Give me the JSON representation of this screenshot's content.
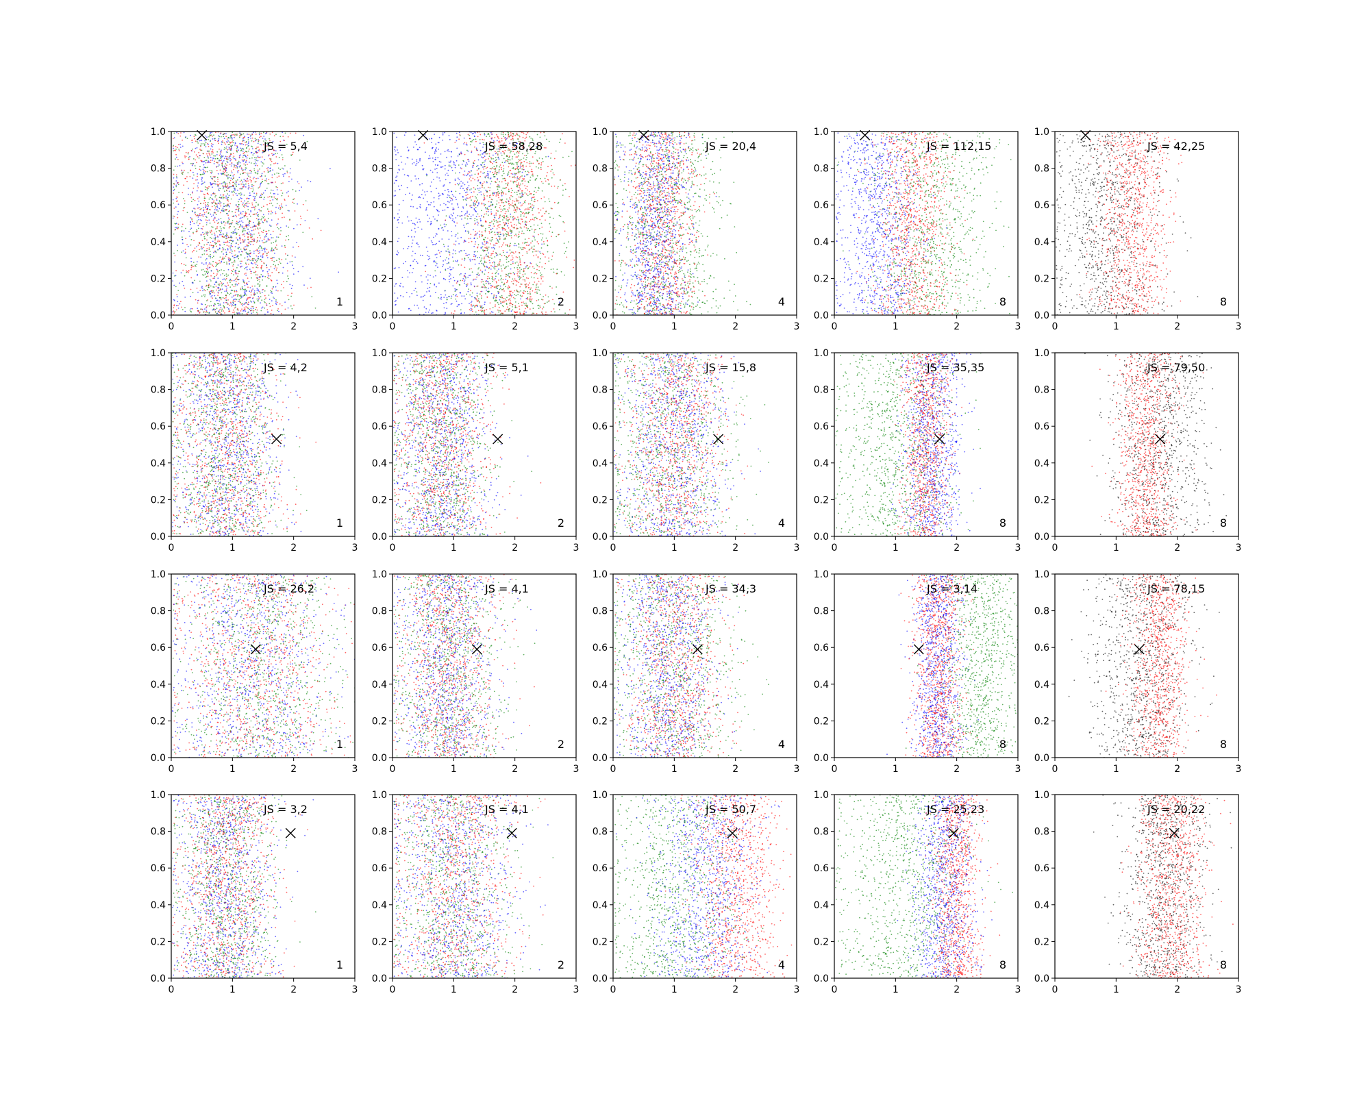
{
  "chart_data": {
    "type": "scatter",
    "layout": {
      "rows": 4,
      "cols": 5
    },
    "xlim": [
      0,
      3
    ],
    "ylim": [
      0,
      1
    ],
    "x_ticks": [
      "0",
      "1",
      "2",
      "3"
    ],
    "y_ticks": [
      "0.0",
      "0.2",
      "0.4",
      "0.6",
      "0.8",
      "1.0"
    ],
    "colors": {
      "blue": "#0000ff",
      "red": "#ff0000",
      "green": "#008000",
      "black": "#000000"
    },
    "panels": [
      {
        "row": 0,
        "col": 0,
        "js_label": "JS = 5,4",
        "corner_label": "1",
        "marker": [
          0.5,
          0.98
        ],
        "groups": [
          {
            "color": "blue",
            "mean": 1.0,
            "sd": 0.5
          },
          {
            "color": "red",
            "mean": 1.0,
            "sd": 0.5
          },
          {
            "color": "green",
            "mean": 1.0,
            "sd": 0.45
          }
        ]
      },
      {
        "row": 0,
        "col": 1,
        "js_label": "JS = 58,28",
        "corner_label": "2",
        "marker": [
          0.5,
          0.98
        ],
        "groups": [
          {
            "color": "blue",
            "mean": 1.0,
            "sd": 0.55
          },
          {
            "color": "red",
            "mean": 1.9,
            "sd": 0.4
          },
          {
            "color": "green",
            "mean": 1.9,
            "sd": 0.45
          }
        ]
      },
      {
        "row": 0,
        "col": 2,
        "js_label": "JS = 20,4",
        "corner_label": "4",
        "marker": [
          0.5,
          0.98
        ],
        "groups": [
          {
            "color": "blue",
            "mean": 0.7,
            "sd": 0.3
          },
          {
            "color": "red",
            "mean": 0.8,
            "sd": 0.3
          },
          {
            "color": "green",
            "mean": 0.9,
            "sd": 0.45
          }
        ]
      },
      {
        "row": 0,
        "col": 3,
        "js_label": "JS = 112,15",
        "corner_label": "8",
        "marker": [
          0.5,
          0.98
        ],
        "groups": [
          {
            "color": "blue",
            "mean": 0.7,
            "sd": 0.35
          },
          {
            "color": "red",
            "mean": 1.3,
            "sd": 0.3
          },
          {
            "color": "green",
            "mean": 1.6,
            "sd": 0.5
          }
        ]
      },
      {
        "row": 0,
        "col": 4,
        "js_label": "JS = 42,25",
        "corner_label": "8",
        "marker": [
          0.5,
          0.98
        ],
        "groups": [
          {
            "color": "black",
            "mean": 0.8,
            "sd": 0.45
          },
          {
            "color": "red",
            "mean": 1.3,
            "sd": 0.3
          }
        ]
      },
      {
        "row": 1,
        "col": 0,
        "js_label": "JS = 4,2",
        "corner_label": "1",
        "marker": [
          1.72,
          0.53
        ],
        "groups": [
          {
            "color": "blue",
            "mean": 0.9,
            "sd": 0.45
          },
          {
            "color": "red",
            "mean": 0.9,
            "sd": 0.45
          },
          {
            "color": "green",
            "mean": 0.9,
            "sd": 0.45
          }
        ]
      },
      {
        "row": 1,
        "col": 1,
        "js_label": "JS = 5,1",
        "corner_label": "2",
        "marker": [
          1.72,
          0.53
        ],
        "groups": [
          {
            "color": "blue",
            "mean": 0.8,
            "sd": 0.4
          },
          {
            "color": "red",
            "mean": 0.8,
            "sd": 0.4
          },
          {
            "color": "green",
            "mean": 0.8,
            "sd": 0.4
          }
        ]
      },
      {
        "row": 1,
        "col": 2,
        "js_label": "JS = 15,8",
        "corner_label": "4",
        "marker": [
          1.72,
          0.53
        ],
        "groups": [
          {
            "color": "blue",
            "mean": 1.0,
            "sd": 0.45
          },
          {
            "color": "red",
            "mean": 1.0,
            "sd": 0.4
          },
          {
            "color": "green",
            "mean": 0.9,
            "sd": 0.55
          }
        ]
      },
      {
        "row": 1,
        "col": 3,
        "js_label": "JS = 35,35",
        "corner_label": "8",
        "marker": [
          1.72,
          0.53
        ],
        "groups": [
          {
            "color": "green",
            "mean": 1.0,
            "sd": 0.5
          },
          {
            "color": "red",
            "mean": 1.5,
            "sd": 0.2
          },
          {
            "color": "blue",
            "mean": 1.6,
            "sd": 0.25
          }
        ]
      },
      {
        "row": 1,
        "col": 4,
        "js_label": "JS = 79,50",
        "corner_label": "8",
        "marker": [
          1.72,
          0.53
        ],
        "groups": [
          {
            "color": "black",
            "mean": 1.7,
            "sd": 0.4
          },
          {
            "color": "red",
            "mean": 1.5,
            "sd": 0.25
          }
        ]
      },
      {
        "row": 2,
        "col": 0,
        "js_label": "JS = 26,2",
        "corner_label": "1",
        "marker": [
          1.38,
          0.59
        ],
        "groups": [
          {
            "color": "blue",
            "mean": 1.3,
            "sd": 0.65
          },
          {
            "color": "red",
            "mean": 1.4,
            "sd": 0.65
          },
          {
            "color": "green",
            "mean": 1.5,
            "sd": 0.65
          }
        ]
      },
      {
        "row": 2,
        "col": 1,
        "js_label": "JS = 4,1",
        "corner_label": "2",
        "marker": [
          1.38,
          0.59
        ],
        "groups": [
          {
            "color": "blue",
            "mean": 0.9,
            "sd": 0.4
          },
          {
            "color": "red",
            "mean": 0.9,
            "sd": 0.4
          },
          {
            "color": "green",
            "mean": 0.9,
            "sd": 0.45
          }
        ]
      },
      {
        "row": 2,
        "col": 2,
        "js_label": "JS = 34,3",
        "corner_label": "4",
        "marker": [
          1.38,
          0.59
        ],
        "groups": [
          {
            "color": "blue",
            "mean": 0.9,
            "sd": 0.4
          },
          {
            "color": "red",
            "mean": 1.0,
            "sd": 0.4
          },
          {
            "color": "green",
            "mean": 1.0,
            "sd": 0.55
          }
        ]
      },
      {
        "row": 2,
        "col": 3,
        "js_label": "JS = 3,14",
        "corner_label": "8",
        "marker": [
          1.38,
          0.59
        ],
        "groups": [
          {
            "color": "blue",
            "mean": 1.7,
            "sd": 0.2
          },
          {
            "color": "red",
            "mean": 1.7,
            "sd": 0.2
          },
          {
            "color": "green",
            "mean": 2.4,
            "sd": 0.35
          }
        ]
      },
      {
        "row": 2,
        "col": 4,
        "js_label": "JS = 78,15",
        "corner_label": "8",
        "marker": [
          1.38,
          0.59
        ],
        "groups": [
          {
            "color": "black",
            "mean": 1.4,
            "sd": 0.4
          },
          {
            "color": "red",
            "mean": 1.7,
            "sd": 0.25
          }
        ]
      },
      {
        "row": 3,
        "col": 0,
        "js_label": "JS = 3,2",
        "corner_label": "1",
        "marker": [
          1.95,
          0.79
        ],
        "groups": [
          {
            "color": "blue",
            "mean": 0.9,
            "sd": 0.4
          },
          {
            "color": "red",
            "mean": 0.9,
            "sd": 0.4
          },
          {
            "color": "green",
            "mean": 0.9,
            "sd": 0.4
          }
        ]
      },
      {
        "row": 3,
        "col": 1,
        "js_label": "JS = 4,1",
        "corner_label": "2",
        "marker": [
          1.95,
          0.79
        ],
        "groups": [
          {
            "color": "blue",
            "mean": 1.0,
            "sd": 0.5
          },
          {
            "color": "red",
            "mean": 1.0,
            "sd": 0.5
          },
          {
            "color": "green",
            "mean": 1.0,
            "sd": 0.5
          }
        ]
      },
      {
        "row": 3,
        "col": 2,
        "js_label": "JS = 50,7",
        "corner_label": "4",
        "marker": [
          1.95,
          0.79
        ],
        "groups": [
          {
            "color": "green",
            "mean": 1.0,
            "sd": 0.55
          },
          {
            "color": "blue",
            "mean": 1.5,
            "sd": 0.45
          },
          {
            "color": "red",
            "mean": 2.0,
            "sd": 0.35
          }
        ]
      },
      {
        "row": 3,
        "col": 3,
        "js_label": "JS = 25,23",
        "corner_label": "8",
        "marker": [
          1.95,
          0.79
        ],
        "groups": [
          {
            "color": "green",
            "mean": 1.1,
            "sd": 0.55
          },
          {
            "color": "blue",
            "mean": 1.8,
            "sd": 0.25
          },
          {
            "color": "red",
            "mean": 2.0,
            "sd": 0.2
          }
        ]
      },
      {
        "row": 3,
        "col": 4,
        "js_label": "JS = 20,22",
        "corner_label": "8",
        "marker": [
          1.95,
          0.79
        ],
        "groups": [
          {
            "color": "black",
            "mean": 1.8,
            "sd": 0.35
          },
          {
            "color": "red",
            "mean": 1.9,
            "sd": 0.3
          }
        ]
      }
    ]
  }
}
